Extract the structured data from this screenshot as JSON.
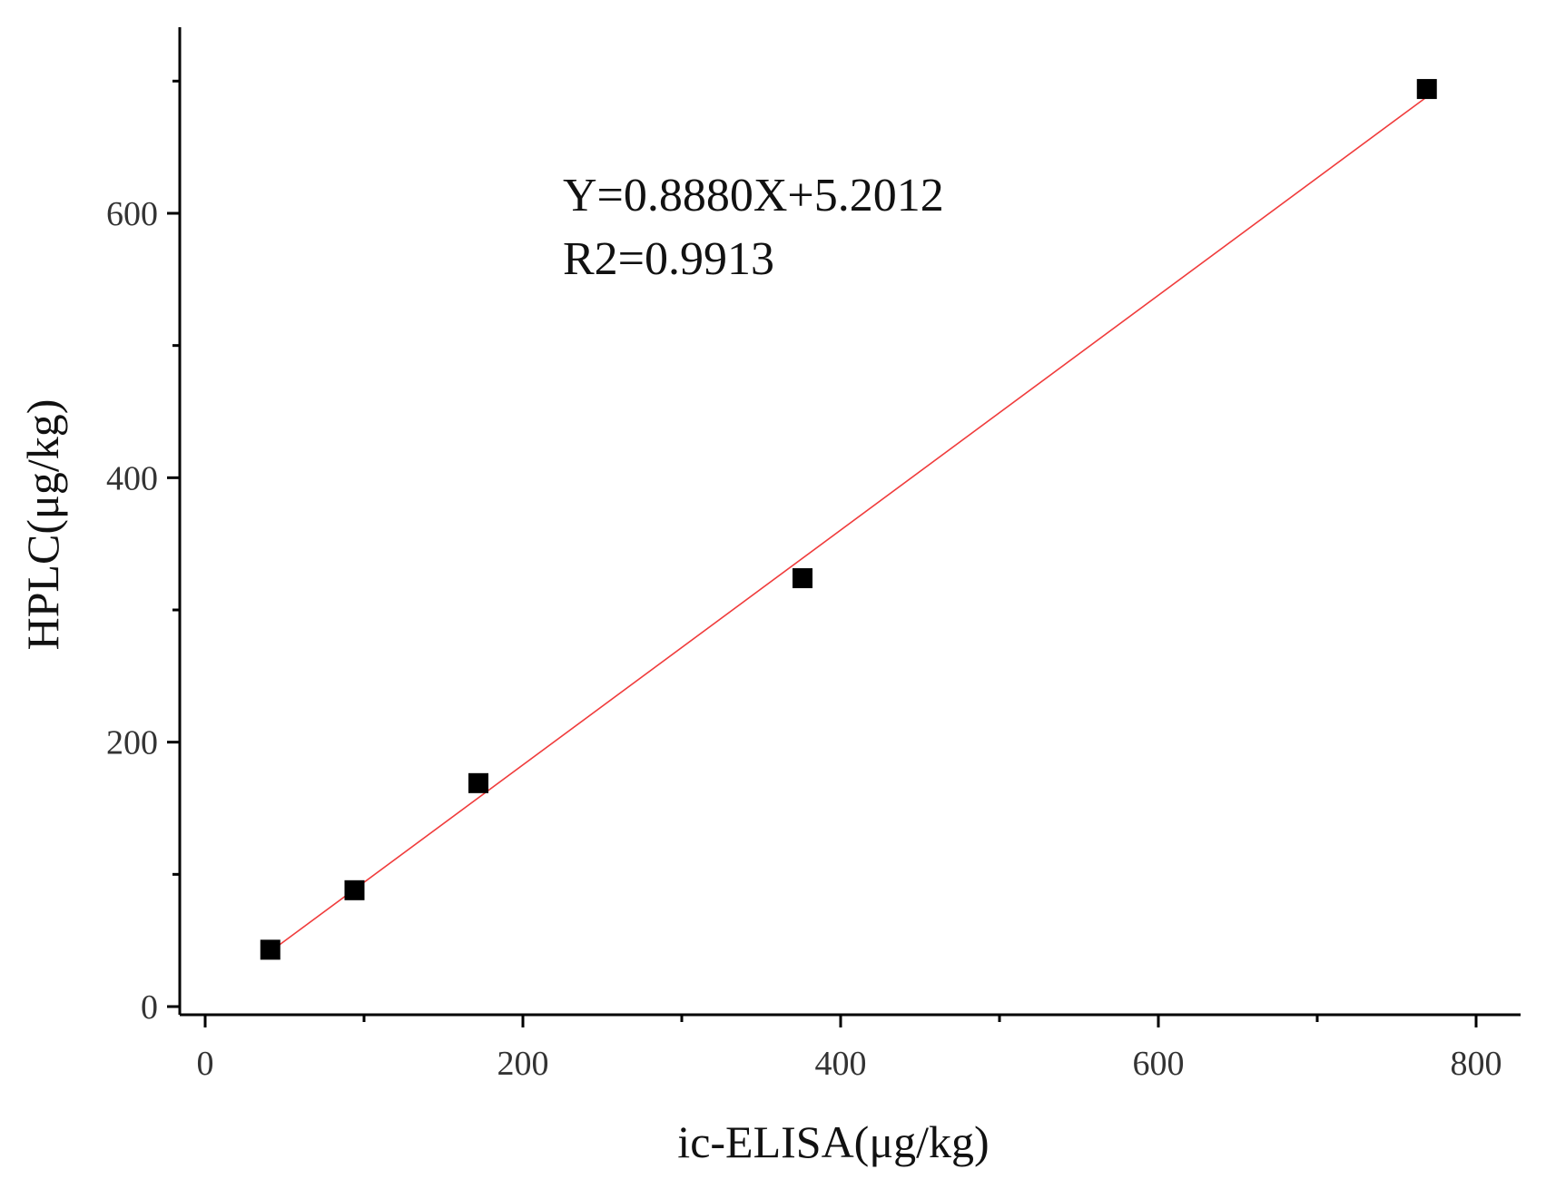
{
  "chart_data": {
    "type": "scatter",
    "title": "",
    "xlabel": "ic-ELISA(μg/kg)",
    "ylabel": "HPLC(μg/kg)",
    "xlim": [
      -20,
      830
    ],
    "ylim": [
      -20,
      740
    ],
    "x_ticks": [
      0,
      200,
      400,
      600,
      800
    ],
    "x_minor_ticks": [
      100,
      300,
      500,
      700
    ],
    "y_ticks": [
      0,
      200,
      400,
      600
    ],
    "y_minor_ticks": [
      100,
      300,
      500,
      700
    ],
    "grid": false,
    "legend": "none",
    "points": [
      {
        "x": 41,
        "y": 43
      },
      {
        "x": 94,
        "y": 88
      },
      {
        "x": 172,
        "y": 169
      },
      {
        "x": 376,
        "y": 324
      },
      {
        "x": 769,
        "y": 694
      }
    ],
    "fit": {
      "slope": 0.888,
      "intercept": 5.2012,
      "x_range": [
        41,
        769
      ],
      "color": "#f03c3c"
    },
    "annotations": [
      "Y=0.8880X+5.2012",
      "R2=0.9913"
    ],
    "marker_color": "#000000"
  }
}
